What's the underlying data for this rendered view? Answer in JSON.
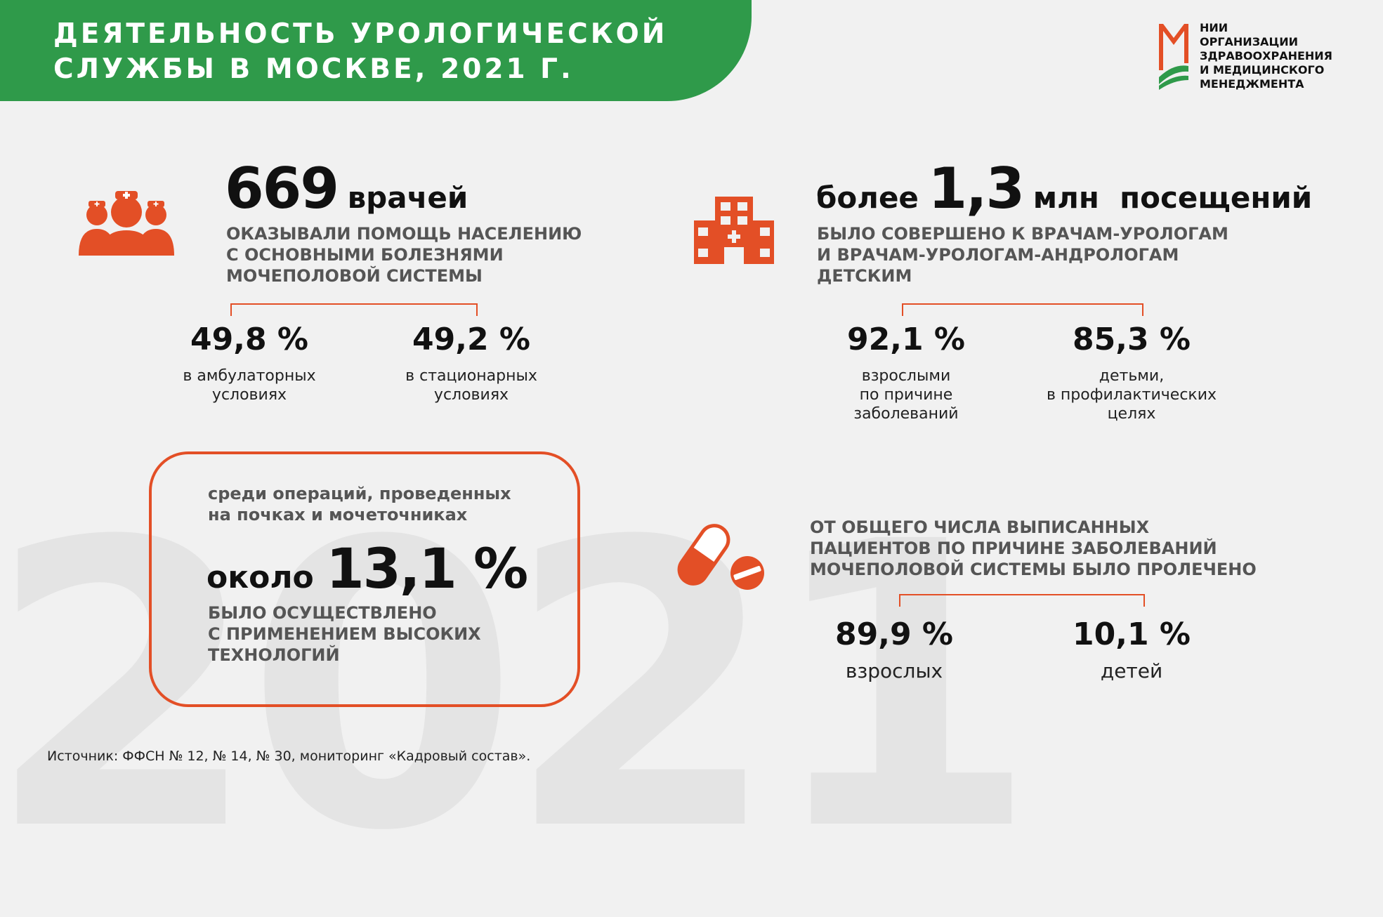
{
  "header": {
    "title": "ДЕЯТЕЛЬНОСТЬ УРОЛОГИЧЕСКОЙ\nСЛУЖБЫ В МОСКВЕ, 2021 г."
  },
  "logo": {
    "text": "НИИ\nОРГАНИЗАЦИИ\nЗДРАВООХРАНЕНИЯ\nИ МЕДИЦИНСКОГО\nМЕНЕДЖМЕНТА"
  },
  "background_year": "2021",
  "colors": {
    "accent": "#e34f26",
    "header_green": "#2f9a4a",
    "background": "#f1f1f1"
  },
  "doctors": {
    "icon": "doctors-icon",
    "number": "669",
    "unit": "врачей",
    "description": "ОКАЗЫВАЛИ ПОМОЩЬ НАСЕЛЕНИЮ\nС ОСНОВНЫМИ БОЛЕЗНЯМИ\nМОЧЕПОЛОВОЙ СИСТЕМЫ",
    "stats": [
      {
        "value": "49,8 %",
        "label": "в амбулаторных\nусловиях"
      },
      {
        "value": "49,2 %",
        "label": "в стационарных\nусловиях"
      }
    ]
  },
  "visits": {
    "icon": "hospital-icon",
    "prefix": "более",
    "number": "1,3",
    "unit": "млн  посещений",
    "description": "БЫЛО СОВЕРШЕНО К ВРАЧАМ-УРОЛОГАМ\nИ ВРАЧАМ-УРОЛОГАМ-АНДРОЛОГАМ\nДЕТСКИМ",
    "stats": [
      {
        "value": "92,1 %",
        "label": "взрослыми\nпо причине\nзаболеваний"
      },
      {
        "value": "85,3 %",
        "label": "детьми,\nв профилактических\nцелях"
      }
    ]
  },
  "operations": {
    "intro": "среди операций, проведенных\nна почках и мочеточниках",
    "prefix": "около",
    "number": "13,1 %",
    "description": "БЫЛО ОСУЩЕСТВЛЕНО\nС ПРИМЕНЕНИЕМ ВЫСОКИХ\nТЕХНОЛОГИЙ"
  },
  "patients": {
    "icon": "pills-icon",
    "description": "ОТ ОБЩЕГО ЧИСЛА ВЫПИСАННЫХ\nПАЦИЕНТОВ ПО ПРИЧИНЕ ЗАБОЛЕВАНИЙ\nМОЧЕПОЛОВОЙ СИСТЕМЫ БЫЛО ПРОЛЕЧЕНО",
    "stats": [
      {
        "value": "89,9 %",
        "label": "взрослых"
      },
      {
        "value": "10,1 %",
        "label": "детей"
      }
    ]
  },
  "source": "Источник: ФФСН № 12, № 14, № 30, мониторинг «Кадровый состав»."
}
